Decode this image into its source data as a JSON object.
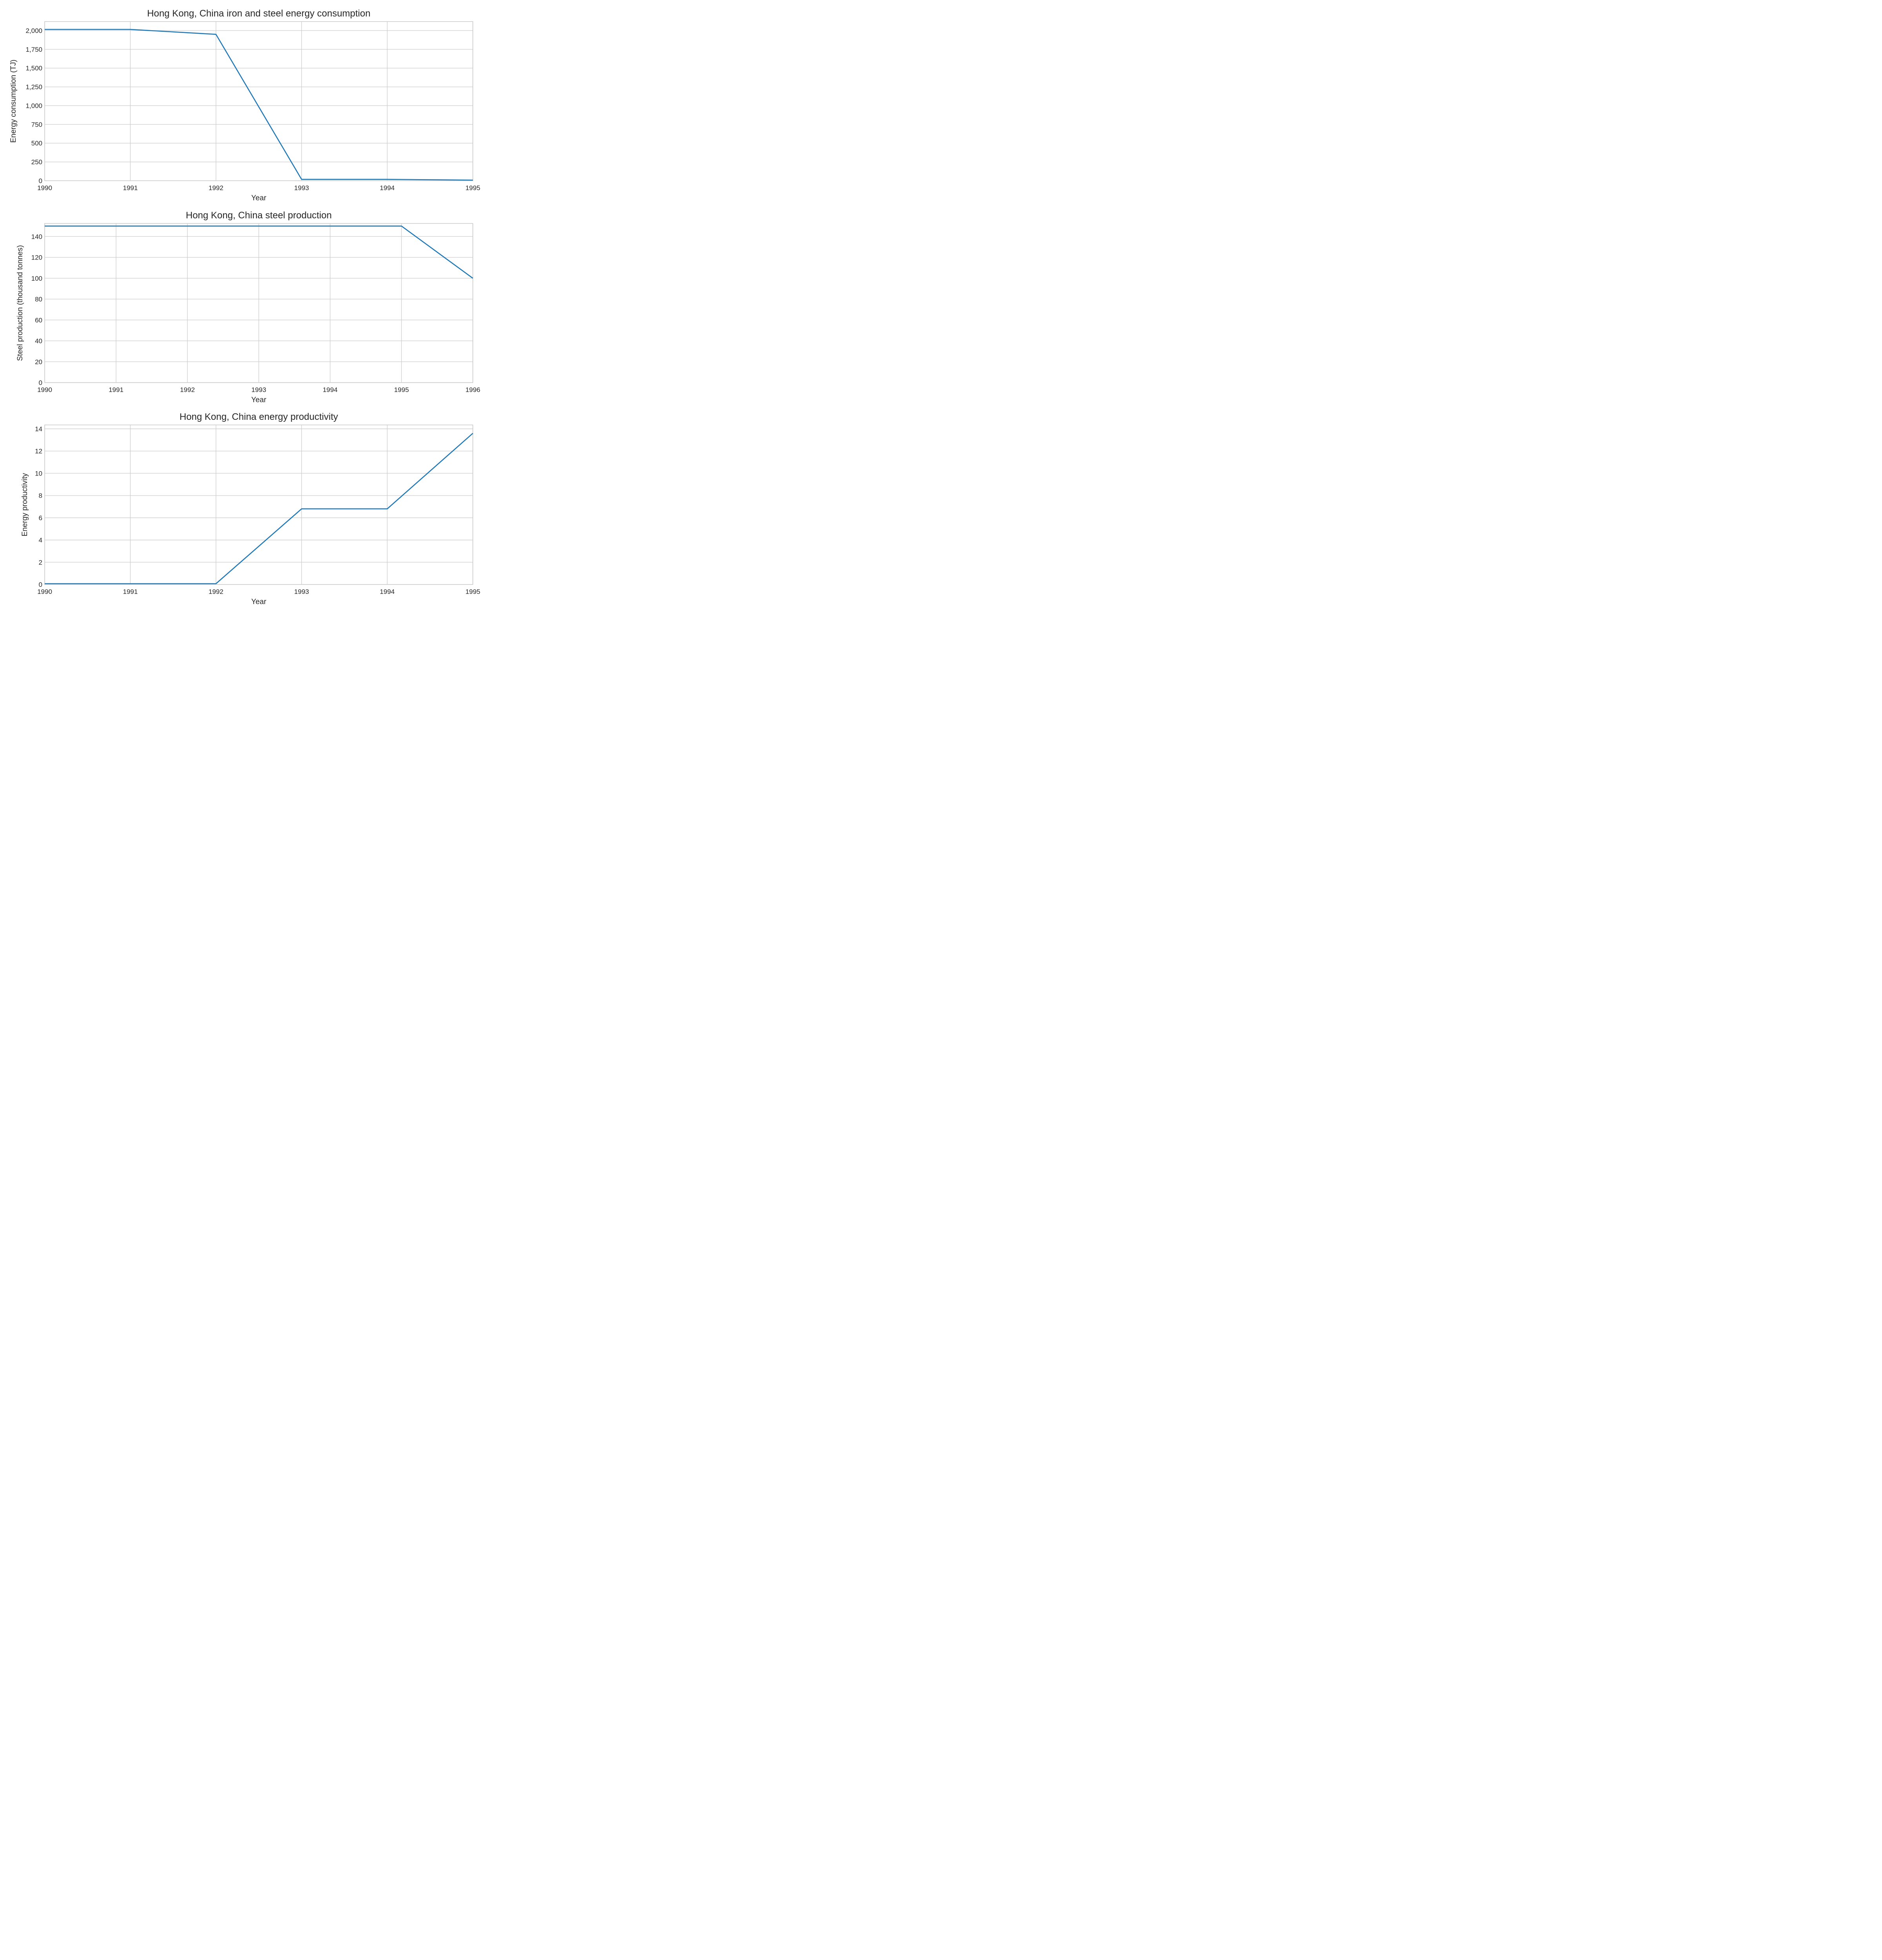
{
  "chart_data": [
    {
      "type": "line",
      "title": "Hong Kong, China iron and steel energy consumption",
      "xlabel": "Year",
      "ylabel": "Energy consumption (TJ)",
      "xlim": [
        1990,
        1995
      ],
      "ylim": [
        0,
        2120
      ],
      "x_ticks": [
        1990,
        1991,
        1992,
        1993,
        1994,
        1995
      ],
      "y_ticks": [
        0,
        250,
        500,
        750,
        1000,
        1250,
        1500,
        1750,
        2000
      ],
      "y_tick_labels": [
        "0",
        "250",
        "500",
        "750",
        "1,000",
        "1,250",
        "1,500",
        "1,750",
        "2,000"
      ],
      "x": [
        1990,
        1991,
        1992,
        1993,
        1994,
        1995
      ],
      "series": [
        {
          "values": [
            2015,
            2015,
            1950,
            18,
            18,
            8
          ]
        }
      ],
      "grid": true,
      "color": "#1f77b4"
    },
    {
      "type": "line",
      "title": "Hong Kong, China steel production",
      "xlabel": "Year",
      "ylabel": "Steel production (thousand tonnes)",
      "xlim": [
        1990,
        1996
      ],
      "ylim": [
        0,
        152.5
      ],
      "x_ticks": [
        1990,
        1991,
        1992,
        1993,
        1994,
        1995,
        1996
      ],
      "y_ticks": [
        0,
        20,
        40,
        60,
        80,
        100,
        120,
        140
      ],
      "y_tick_labels": [
        "0",
        "20",
        "40",
        "60",
        "80",
        "100",
        "120",
        "140"
      ],
      "x": [
        1990,
        1991,
        1992,
        1993,
        1994,
        1995,
        1996
      ],
      "series": [
        {
          "values": [
            150,
            150,
            150,
            150,
            150,
            150,
            100
          ]
        }
      ],
      "grid": true,
      "color": "#1f77b4"
    },
    {
      "type": "line",
      "title": "Hong Kong, China energy productivity",
      "xlabel": "Year",
      "ylabel": "Energy productivity",
      "xlim": [
        1990,
        1995
      ],
      "ylim": [
        0,
        14.35
      ],
      "x_ticks": [
        1990,
        1991,
        1992,
        1993,
        1994,
        1995
      ],
      "y_ticks": [
        0,
        2,
        4,
        6,
        8,
        10,
        12,
        14
      ],
      "y_tick_labels": [
        "0",
        "2",
        "4",
        "6",
        "8",
        "10",
        "12",
        "14"
      ],
      "x": [
        1990,
        1991,
        1992,
        1993,
        1994,
        1995
      ],
      "series": [
        {
          "values": [
            0.07,
            0.07,
            0.07,
            6.8,
            6.8,
            13.6
          ]
        }
      ],
      "grid": true,
      "color": "#1f77b4"
    }
  ]
}
